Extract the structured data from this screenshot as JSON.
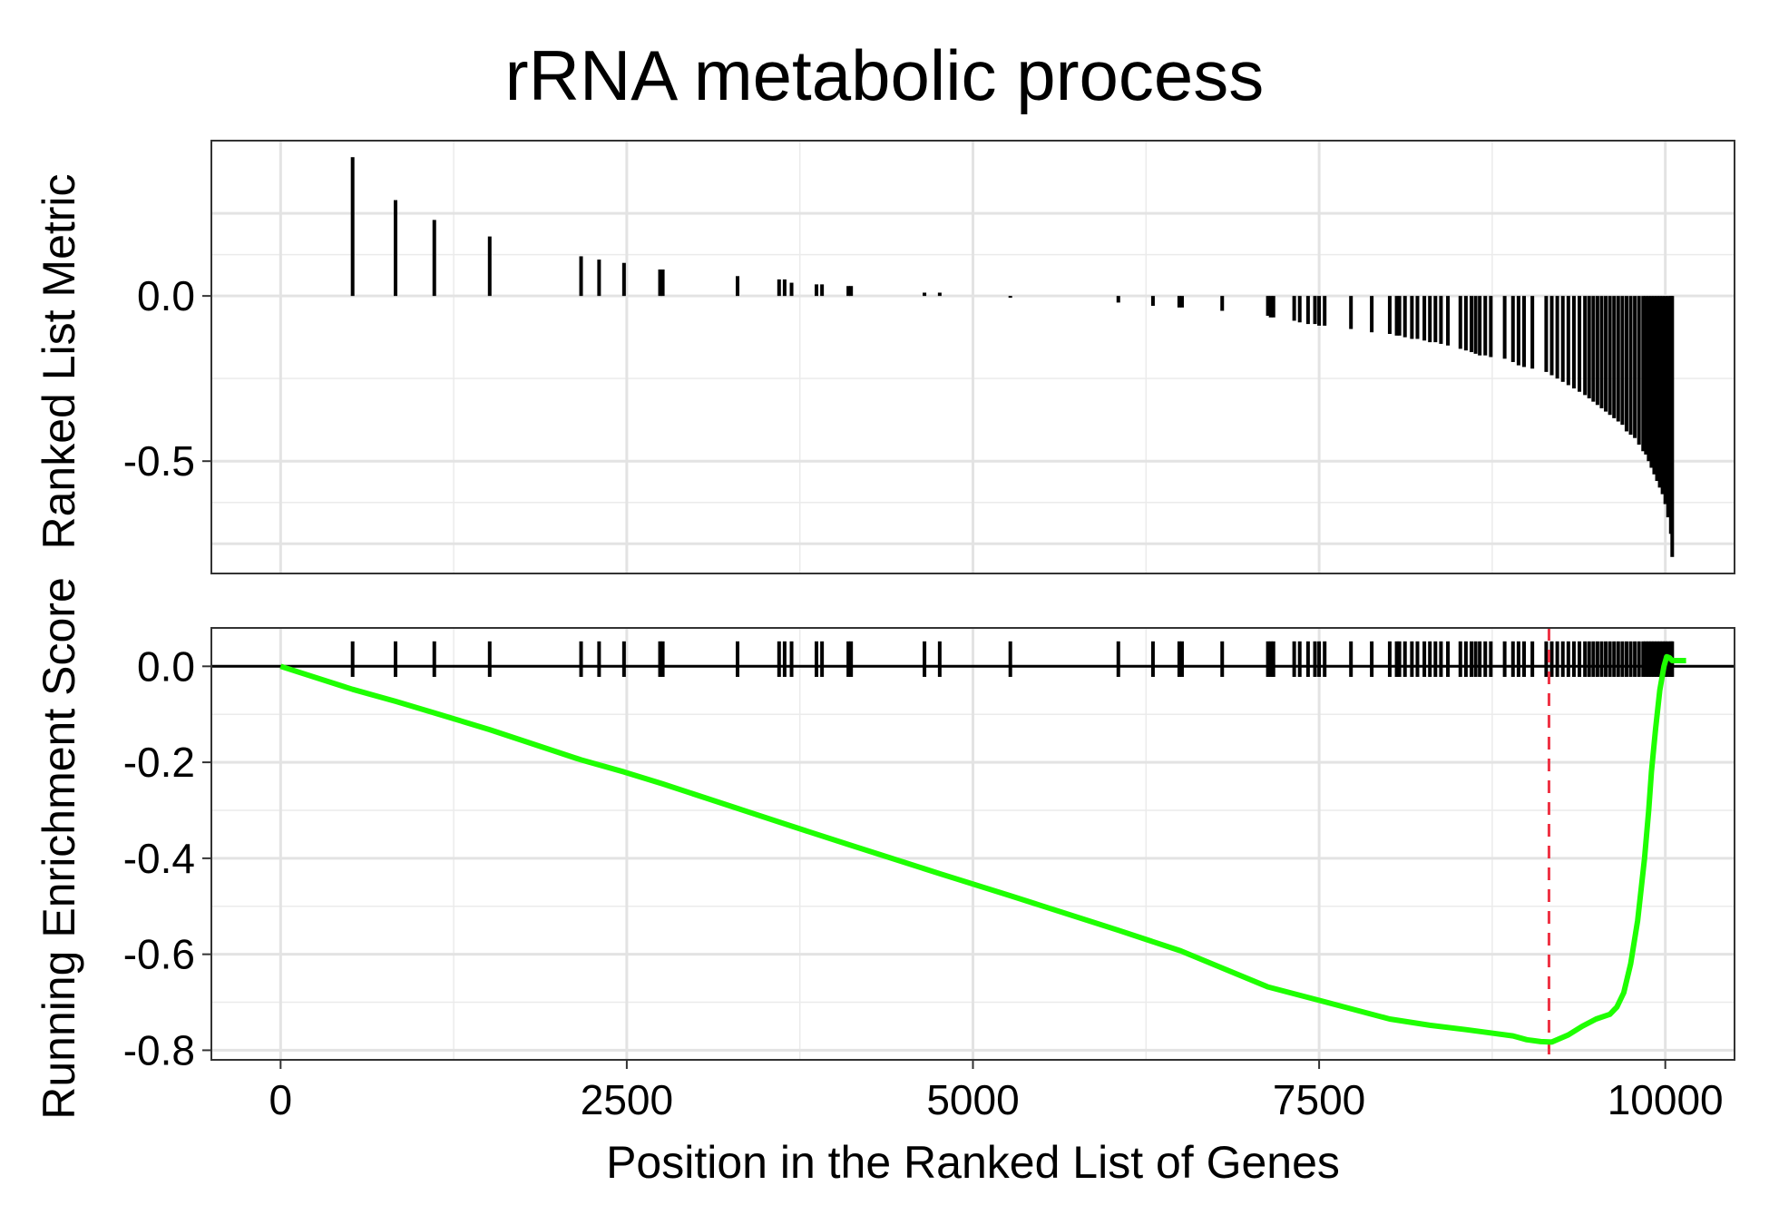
{
  "chart_data": [
    {
      "type": "bar",
      "title": "rRNA metabolic process",
      "xlabel": "",
      "ylabel": "Ranked List Metric",
      "xlim": [
        -500,
        10500
      ],
      "ylim": [
        -0.84,
        0.47
      ],
      "x_ticks": [
        0,
        2500,
        5000,
        7500,
        10000
      ],
      "y_ticks": [
        0.0,
        -0.5
      ],
      "y_tick_labels": [
        "0.0",
        "-0.5"
      ],
      "grid": true,
      "bars": {
        "x": [
          520,
          830,
          1110,
          1510,
          2170,
          2300,
          2480,
          2740,
          2760,
          3300,
          3600,
          3640,
          3690,
          3870,
          3910,
          4100,
          4120,
          4650,
          4760,
          5270,
          6050,
          6300,
          6490,
          6510,
          6800,
          7130,
          7150,
          7170,
          7320,
          7360,
          7420,
          7470,
          7500,
          7540,
          7730,
          7880,
          8010,
          8060,
          8080,
          8120,
          8170,
          8210,
          8260,
          8300,
          8340,
          8380,
          8430,
          8520,
          8560,
          8600,
          8630,
          8660,
          8700,
          8740,
          8840,
          8900,
          8940,
          8980,
          9040,
          9140,
          9180,
          9220,
          9260,
          9300,
          9340,
          9380,
          9420,
          9450,
          9480,
          9510,
          9540,
          9570,
          9600,
          9630,
          9660,
          9690,
          9720,
          9750,
          9780,
          9810,
          9840,
          9860,
          9880,
          9900,
          9920,
          9940,
          9960,
          9980,
          10000,
          10020,
          10040,
          10050
        ],
        "values": [
          0.42,
          0.29,
          0.23,
          0.18,
          0.12,
          0.11,
          0.1,
          0.08,
          0.08,
          0.06,
          0.05,
          0.05,
          0.04,
          0.035,
          0.035,
          0.03,
          0.03,
          0.01,
          0.01,
          -0.005,
          -0.02,
          -0.03,
          -0.035,
          -0.035,
          -0.045,
          -0.06,
          -0.065,
          -0.065,
          -0.075,
          -0.08,
          -0.085,
          -0.085,
          -0.09,
          -0.09,
          -0.1,
          -0.11,
          -0.115,
          -0.12,
          -0.12,
          -0.125,
          -0.13,
          -0.13,
          -0.135,
          -0.14,
          -0.14,
          -0.145,
          -0.15,
          -0.16,
          -0.165,
          -0.17,
          -0.175,
          -0.18,
          -0.18,
          -0.185,
          -0.19,
          -0.2,
          -0.21,
          -0.215,
          -0.22,
          -0.23,
          -0.24,
          -0.25,
          -0.26,
          -0.27,
          -0.28,
          -0.29,
          -0.3,
          -0.31,
          -0.32,
          -0.33,
          -0.34,
          -0.35,
          -0.36,
          -0.37,
          -0.38,
          -0.39,
          -0.41,
          -0.42,
          -0.43,
          -0.45,
          -0.47,
          -0.48,
          -0.5,
          -0.52,
          -0.54,
          -0.56,
          -0.58,
          -0.6,
          -0.63,
          -0.67,
          -0.72,
          -0.79
        ]
      }
    },
    {
      "type": "line",
      "title": "",
      "xlabel": "Position in the Ranked List of Genes",
      "ylabel": "Running Enrichment Score",
      "xlim": [
        -500,
        10500
      ],
      "ylim": [
        -0.82,
        0.08
      ],
      "x_ticks": [
        0,
        2500,
        5000,
        7500,
        10000
      ],
      "x_tick_labels": [
        "0",
        "2500",
        "5000",
        "7500",
        "10000"
      ],
      "y_ticks": [
        0.0,
        -0.2,
        -0.4,
        -0.6,
        -0.8
      ],
      "y_tick_labels": [
        "0.0",
        "-0.2",
        "-0.4",
        "-0.6",
        "-0.8"
      ],
      "grid": true,
      "series": [
        {
          "color": "#1EFF00",
          "x": [
            0,
            520,
            830,
            1110,
            1510,
            2170,
            2480,
            2760,
            3300,
            3690,
            4120,
            4760,
            5270,
            6050,
            6500,
            7130,
            7540,
            8010,
            8300,
            8560,
            8900,
            9000,
            9100,
            9180,
            9300,
            9400,
            9500,
            9600,
            9650,
            9700,
            9750,
            9800,
            9850,
            9880,
            9900,
            9930,
            9960,
            9990,
            10010,
            10030,
            10050,
            10080,
            10150
          ],
          "y": [
            0.0,
            -0.048,
            -0.073,
            -0.097,
            -0.132,
            -0.195,
            -0.22,
            -0.245,
            -0.296,
            -0.333,
            -0.373,
            -0.432,
            -0.478,
            -0.55,
            -0.593,
            -0.668,
            -0.699,
            -0.735,
            -0.748,
            -0.757,
            -0.77,
            -0.778,
            -0.782,
            -0.783,
            -0.768,
            -0.75,
            -0.735,
            -0.725,
            -0.71,
            -0.68,
            -0.62,
            -0.53,
            -0.4,
            -0.3,
            -0.22,
            -0.13,
            -0.05,
            0.0,
            0.02,
            0.018,
            0.012,
            0.012,
            0.012
          ]
        }
      ],
      "gene_hits_x": [
        520,
        830,
        1110,
        1510,
        2170,
        2300,
        2480,
        2740,
        2760,
        3300,
        3600,
        3640,
        3690,
        3870,
        3910,
        4100,
        4120,
        4650,
        4760,
        5270,
        6050,
        6300,
        6490,
        6510,
        6800,
        7130,
        7150,
        7170,
        7320,
        7360,
        7420,
        7470,
        7500,
        7540,
        7730,
        7880,
        8010,
        8060,
        8080,
        8120,
        8170,
        8210,
        8260,
        8300,
        8340,
        8380,
        8430,
        8520,
        8560,
        8600,
        8630,
        8660,
        8700,
        8740,
        8840,
        8900,
        8940,
        8980,
        9040,
        9140,
        9180,
        9220,
        9260,
        9300,
        9340,
        9380,
        9420,
        9450,
        9480,
        9510,
        9540,
        9570,
        9600,
        9630,
        9660,
        9690,
        9720,
        9750,
        9780,
        9810,
        9840,
        9860,
        9880,
        9900,
        9920,
        9940,
        9960,
        9980,
        10000,
        10020,
        10040,
        10050
      ],
      "vline": {
        "x": 9160,
        "color": "#EE3344",
        "style": "dashed"
      },
      "hline": {
        "y": 0.0,
        "color": "#000000"
      }
    }
  ]
}
